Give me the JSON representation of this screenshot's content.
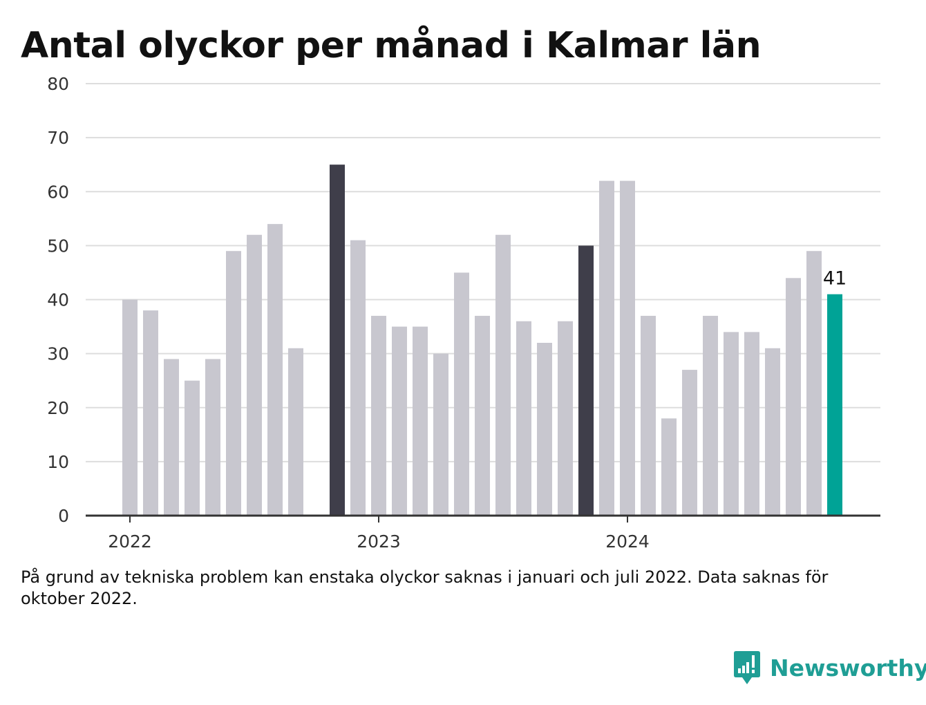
{
  "page": {
    "title": "Antal olyckor per månad i Kalmar län",
    "footnote": "På grund av tekniska problem kan enstaka olyckor saknas i januari och juli 2022. Data saknas för oktober 2022.",
    "brand": "Newsworthy",
    "brand_icon": "newsworthy-logo-icon"
  },
  "colors": {
    "default_bar": "#c8c7cf",
    "highlight_bar": "#3f3e4a",
    "latest_bar": "#00a396",
    "grid": "#dddddd",
    "axis": "#333333",
    "brand": "#1f9e95"
  },
  "chart_data": {
    "type": "bar",
    "title": "Antal olyckor per månad i Kalmar län",
    "xlabel": "",
    "ylabel": "",
    "ylim": [
      0,
      80
    ],
    "yticks": [
      0,
      10,
      20,
      30,
      40,
      50,
      60,
      70,
      80
    ],
    "grid": true,
    "legend": "none",
    "categories": [
      "2022-01",
      "2022-02",
      "2022-03",
      "2022-04",
      "2022-05",
      "2022-06",
      "2022-07",
      "2022-08",
      "2022-09",
      "2022-10",
      "2022-11",
      "2022-12",
      "2023-01",
      "2023-02",
      "2023-03",
      "2023-04",
      "2023-05",
      "2023-06",
      "2023-07",
      "2023-08",
      "2023-09",
      "2023-10",
      "2023-11",
      "2023-12",
      "2024-01",
      "2024-02",
      "2024-03",
      "2024-04",
      "2024-05",
      "2024-06",
      "2024-07",
      "2024-08",
      "2024-09",
      "2024-10",
      "2024-11",
      "2024-12"
    ],
    "values": [
      40,
      38,
      29,
      25,
      29,
      49,
      52,
      54,
      31,
      null,
      65,
      51,
      37,
      35,
      35,
      30,
      45,
      37,
      52,
      36,
      32,
      36,
      50,
      62,
      62,
      37,
      18,
      27,
      37,
      34,
      34,
      31,
      44,
      49,
      41,
      null
    ],
    "highlight": [
      "2022-11",
      "2023-11"
    ],
    "latest": "2024-11",
    "x_tick_labels": [
      {
        "label": "2022",
        "category": "2022-01"
      },
      {
        "label": "2023",
        "category": "2023-01"
      },
      {
        "label": "2024",
        "category": "2024-01"
      }
    ],
    "data_labels": [
      {
        "category": "2024-11",
        "text": "41"
      }
    ]
  }
}
